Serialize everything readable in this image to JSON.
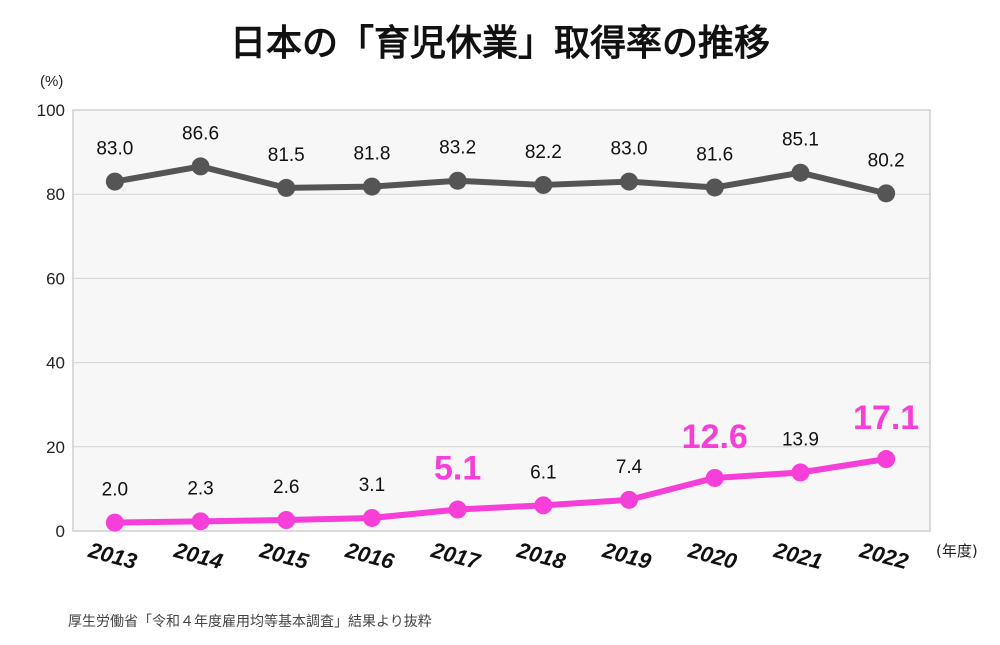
{
  "title": "日本の「育児休業」取得率の推移",
  "source": "厚生労働省「令和４年度雇用均等基本調査」結果より抜粋",
  "chart_data": {
    "type": "line",
    "title": "日本の「育児休業」取得率の推移",
    "ylabel": "(%)",
    "xlabel": "(年度)",
    "ylim": [
      0,
      100
    ],
    "yticks": [
      0,
      20,
      40,
      60,
      80,
      100
    ],
    "grid": true,
    "categories": [
      "2013",
      "2014",
      "2015",
      "2016",
      "2017",
      "2018",
      "2019",
      "2020",
      "2021",
      "2022"
    ],
    "series": [
      {
        "values": [
          83.0,
          86.6,
          81.5,
          81.8,
          83.2,
          82.2,
          83.0,
          81.6,
          85.1,
          80.2
        ],
        "color": "#555555",
        "labels": [
          "83.0",
          "86.6",
          "81.5",
          "81.8",
          "83.2",
          "82.2",
          "83.0",
          "81.6",
          "85.1",
          "80.2"
        ],
        "highlight": []
      },
      {
        "values": [
          2.0,
          2.3,
          2.6,
          3.1,
          5.1,
          6.1,
          7.4,
          12.6,
          13.9,
          17.1
        ],
        "color": "#f53fd8",
        "labels": [
          "2.0",
          "2.3",
          "2.6",
          "3.1",
          "5.1",
          "6.1",
          "7.4",
          "12.6",
          "13.9",
          "17.1"
        ],
        "highlight": [
          4,
          7,
          9
        ]
      }
    ]
  }
}
